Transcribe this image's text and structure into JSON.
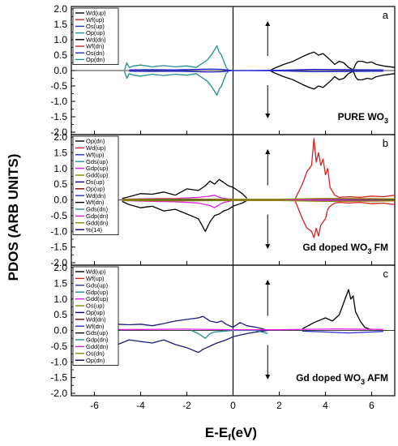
{
  "figure": {
    "ylabel": "PDOS (ARB UNITS)",
    "xlabel_main": "E-E",
    "xlabel_sub": "f",
    "xlabel_unit": "(eV)"
  },
  "chart_data": [
    {
      "type": "line",
      "panel": "a",
      "annotation": {
        "pre": "PURE WO",
        "sub": "3",
        "post": ""
      },
      "xlim": [
        -7,
        7
      ],
      "ylim": [
        -2.0,
        2.0
      ],
      "yticks": [
        2.0,
        1.5,
        1.0,
        0.5,
        0.0,
        -0.5,
        -1.0,
        -1.5,
        -2.0
      ],
      "legend": [
        {
          "name": "Wd(up)",
          "color": "#000000"
        },
        {
          "name": "Wf(up)",
          "color": "#d62020"
        },
        {
          "name": "Os(up)",
          "color": "#2b2bd6"
        },
        {
          "name": "Op(up)",
          "color": "#1f8f8f"
        },
        {
          "name": "Wd(dn)",
          "color": "#000000"
        },
        {
          "name": "Wf(dn)",
          "color": "#d62020"
        },
        {
          "name": "Os(dn)",
          "color": "#2b2bd6"
        },
        {
          "name": "Op(dn)",
          "color": "#1f8f8f"
        }
      ],
      "series": [
        {
          "name": "Op(up)",
          "color": "#1f8f8f",
          "x": [
            -4.7,
            -4.6,
            -4.5,
            -4.3,
            -4.0,
            -3.5,
            -3.0,
            -2.5,
            -2.0,
            -1.6,
            -1.3,
            -1.1,
            -0.9,
            -0.7,
            -0.6,
            -0.5,
            -0.4,
            -0.3,
            -0.2
          ],
          "values": [
            0.02,
            0.25,
            0.1,
            0.15,
            0.18,
            0.12,
            0.16,
            0.12,
            0.15,
            0.1,
            0.25,
            0.35,
            0.55,
            0.8,
            0.6,
            0.5,
            0.3,
            0.1,
            0.02
          ]
        },
        {
          "name": "Op(dn)",
          "color": "#1f8f8f",
          "x": [
            -4.7,
            -4.6,
            -4.5,
            -4.3,
            -4.0,
            -3.5,
            -3.0,
            -2.5,
            -2.0,
            -1.6,
            -1.3,
            -1.1,
            -0.9,
            -0.7,
            -0.6,
            -0.5,
            -0.4,
            -0.3,
            -0.2
          ],
          "values": [
            -0.02,
            -0.25,
            -0.1,
            -0.15,
            -0.18,
            -0.12,
            -0.16,
            -0.12,
            -0.15,
            -0.1,
            -0.25,
            -0.35,
            -0.55,
            -0.8,
            -0.6,
            -0.5,
            -0.3,
            -0.1,
            -0.02
          ]
        },
        {
          "name": "Wd(up)",
          "color": "#000000",
          "x": [
            1.6,
            1.8,
            2.2,
            2.6,
            3.0,
            3.3,
            3.5,
            3.7,
            3.9,
            4.2,
            4.4,
            4.6,
            4.8,
            5.0,
            5.2,
            5.3,
            5.4,
            5.6,
            5.8,
            6.0,
            6.2,
            6.5,
            7.0
          ],
          "values": [
            0.0,
            0.08,
            0.2,
            0.3,
            0.45,
            0.55,
            0.6,
            0.5,
            0.55,
            0.35,
            0.2,
            0.3,
            0.25,
            0.1,
            0.02,
            0.2,
            0.3,
            0.3,
            0.25,
            0.28,
            0.2,
            0.15,
            0.1
          ]
        },
        {
          "name": "Wd(dn)",
          "color": "#000000",
          "x": [
            1.6,
            1.8,
            2.2,
            2.6,
            3.0,
            3.3,
            3.5,
            3.7,
            3.9,
            4.2,
            4.4,
            4.6,
            4.8,
            5.0,
            5.2,
            5.3,
            5.4,
            5.6,
            5.8,
            6.0,
            6.2,
            6.5,
            7.0
          ],
          "values": [
            0.0,
            -0.08,
            -0.2,
            -0.3,
            -0.45,
            -0.55,
            -0.6,
            -0.5,
            -0.55,
            -0.35,
            -0.2,
            -0.3,
            -0.25,
            -0.1,
            -0.02,
            -0.2,
            -0.3,
            -0.3,
            -0.25,
            -0.28,
            -0.2,
            -0.15,
            -0.1
          ]
        },
        {
          "name": "Os(up)",
          "color": "#2b2bd6",
          "x": [
            -4.5,
            -3.5,
            -2.5,
            -1.5,
            -1.0,
            -0.5,
            0.0,
            2.0,
            3.5,
            5.0,
            6.5
          ],
          "values": [
            0.02,
            0.03,
            0.02,
            0.04,
            0.05,
            0.04,
            0.0,
            0.01,
            0.04,
            0.03,
            0.02
          ]
        },
        {
          "name": "Os(dn)",
          "color": "#2b2bd6",
          "x": [
            -4.5,
            -3.5,
            -2.5,
            -1.5,
            -1.0,
            -0.5,
            0.0,
            2.0,
            3.5,
            5.0,
            6.5
          ],
          "values": [
            -0.02,
            -0.03,
            -0.02,
            -0.04,
            -0.05,
            -0.04,
            0.0,
            -0.01,
            -0.04,
            -0.03,
            -0.02
          ]
        }
      ]
    },
    {
      "type": "line",
      "panel": "b",
      "annotation": {
        "pre": "Gd doped WO",
        "sub": "3",
        "post": " FM"
      },
      "xlim": [
        -7,
        7
      ],
      "ylim": [
        -2.0,
        2.0
      ],
      "yticks": [
        2.0,
        1.5,
        1.0,
        0.5,
        0.0,
        -0.5,
        -1.0,
        -1.5,
        -2.0
      ],
      "legend": [
        {
          "name": "Op(dn)",
          "color": "#000000"
        },
        {
          "name": "Wd(up)",
          "color": "#d62020"
        },
        {
          "name": "Wf(up)",
          "color": "#2b2bd6"
        },
        {
          "name": "Gds(up)",
          "color": "#1f8f8f"
        },
        {
          "name": "Gdp(up)",
          "color": "#e020e0"
        },
        {
          "name": "Gdd(up)",
          "color": "#8a8a00"
        },
        {
          "name": "Os(up)",
          "color": "#000080"
        },
        {
          "name": "Op(up)",
          "color": "#800000"
        },
        {
          "name": "Wd(dn)",
          "color": "#2b2bd6"
        },
        {
          "name": "Wf(dn)",
          "color": "#000000"
        },
        {
          "name": "Gds(dn)",
          "color": "#1f8f8f"
        },
        {
          "name": "Gdp(dn)",
          "color": "#e020e0"
        },
        {
          "name": "Gdd(dn)",
          "color": "#8a8a00"
        },
        {
          "name": "%(14)",
          "color": "#000080"
        }
      ],
      "series": [
        {
          "name": "Op(up)",
          "color": "#000000",
          "x": [
            -4.8,
            -4.5,
            -4.0,
            -3.5,
            -3.0,
            -2.5,
            -2.0,
            -1.5,
            -1.2,
            -1.0,
            -0.8,
            -0.6,
            -0.4,
            -0.2,
            0.0,
            0.2,
            0.4,
            0.6
          ],
          "values": [
            0.05,
            0.1,
            0.2,
            0.18,
            0.25,
            0.15,
            0.35,
            0.3,
            0.45,
            0.6,
            0.5,
            0.65,
            0.55,
            0.45,
            0.4,
            0.3,
            0.2,
            0.05
          ]
        },
        {
          "name": "Op(dn)",
          "color": "#000000",
          "x": [
            -4.8,
            -4.5,
            -4.0,
            -3.5,
            -3.0,
            -2.5,
            -2.0,
            -1.5,
            -1.2,
            -1.0,
            -0.8,
            -0.6,
            -0.4,
            -0.2,
            0.0,
            0.2,
            0.4,
            0.6
          ],
          "values": [
            -0.05,
            -0.15,
            -0.25,
            -0.2,
            -0.35,
            -0.3,
            -0.45,
            -0.6,
            -1.0,
            -0.7,
            -0.5,
            -0.45,
            -0.35,
            -0.3,
            -0.2,
            -0.15,
            -0.1,
            -0.02
          ]
        },
        {
          "name": "Wd(up)",
          "color": "#d62020",
          "x": [
            2.7,
            3.0,
            3.2,
            3.4,
            3.5,
            3.6,
            3.7,
            3.8,
            3.9,
            4.0,
            4.1,
            4.2,
            4.4,
            4.6,
            5.0,
            5.5,
            6.0,
            6.5,
            7.0
          ],
          "values": [
            0.05,
            0.5,
            0.9,
            1.1,
            1.95,
            1.2,
            1.5,
            1.1,
            1.3,
            0.8,
            1.0,
            0.4,
            0.15,
            0.08,
            0.1,
            0.08,
            0.12,
            0.1,
            0.15
          ]
        },
        {
          "name": "Wd(dn)",
          "color": "#d62020",
          "x": [
            2.7,
            3.0,
            3.2,
            3.4,
            3.5,
            3.6,
            3.7,
            3.8,
            3.9,
            4.0,
            4.1,
            4.2,
            4.4,
            4.6,
            5.0,
            5.5,
            6.0,
            6.5,
            7.0
          ],
          "values": [
            -0.05,
            -0.6,
            -0.9,
            -1.0,
            -1.2,
            -0.9,
            -1.15,
            -0.8,
            -0.7,
            -0.6,
            -0.3,
            -0.2,
            -0.1,
            -0.08,
            -0.1,
            -0.08,
            -0.12,
            -0.1,
            -0.15
          ]
        },
        {
          "name": "Gdp(up)",
          "color": "#e020e0",
          "x": [
            -4.8,
            -3.5,
            -2.5,
            -1.5,
            -1.0,
            -0.8,
            -0.6,
            -0.4,
            -0.2,
            0.0,
            0.5,
            1.5,
            3.5,
            5.5,
            7.0
          ],
          "values": [
            0.02,
            0.04,
            0.05,
            0.08,
            0.12,
            0.15,
            0.08,
            0.05,
            0.03,
            0.02,
            0.02,
            0.01,
            0.02,
            0.03,
            0.03
          ]
        },
        {
          "name": "Gdp(dn)",
          "color": "#e020e0",
          "x": [
            -4.8,
            -3.5,
            -2.5,
            -1.5,
            -1.0,
            -0.8,
            -0.6,
            -0.4,
            -0.2,
            0.0,
            0.5,
            1.5,
            3.5,
            5.5,
            7.0
          ],
          "values": [
            -0.02,
            -0.05,
            -0.06,
            -0.1,
            -0.18,
            -0.25,
            -0.15,
            -0.08,
            -0.05,
            -0.02,
            -0.02,
            -0.01,
            -0.02,
            -0.03,
            -0.03
          ]
        },
        {
          "name": "Gdd(up)",
          "color": "#8a8a00",
          "x": [
            -4.8,
            -2.0,
            0.0,
            2.0,
            4.0,
            6.0,
            7.0
          ],
          "values": [
            0.02,
            0.03,
            0.02,
            0.02,
            0.05,
            0.04,
            0.03
          ]
        },
        {
          "name": "Gdd(dn)",
          "color": "#8a8a00",
          "x": [
            -4.8,
            -2.0,
            0.0,
            2.0,
            4.0,
            6.0,
            7.0
          ],
          "values": [
            -0.02,
            -0.03,
            -0.02,
            -0.02,
            -0.05,
            -0.04,
            -0.03
          ]
        }
      ]
    },
    {
      "type": "line",
      "panel": "c",
      "annotation": {
        "pre": "Gd doped WO",
        "sub": "3",
        "post": " AFM"
      },
      "xlim": [
        -7,
        7
      ],
      "ylim": [
        -2.0,
        2.0
      ],
      "yticks": [
        2.0,
        1.5,
        1.0,
        0.5,
        0.0,
        -0.5,
        -1.0,
        -1.5,
        -2.0
      ],
      "legend": [
        {
          "name": "Wd(up)",
          "color": "#000000"
        },
        {
          "name": "Wf(up)",
          "color": "#d62020"
        },
        {
          "name": "Gds(up)",
          "color": "#2b2bd6"
        },
        {
          "name": "Gdp(up)",
          "color": "#1f8f8f"
        },
        {
          "name": "Gdd(up)",
          "color": "#e020e0"
        },
        {
          "name": "Os(up)",
          "color": "#8a8a00"
        },
        {
          "name": "Op(up)",
          "color": "#000080"
        },
        {
          "name": "Wd(dn)",
          "color": "#800000"
        },
        {
          "name": "Wf(dn)",
          "color": "#2b2bd6"
        },
        {
          "name": "Gds(up)",
          "color": "#000000"
        },
        {
          "name": "Gdp(dn)",
          "color": "#1f8f8f"
        },
        {
          "name": "Gdd(dn)",
          "color": "#e020e0"
        },
        {
          "name": "Os(dn)",
          "color": "#8a8a00"
        },
        {
          "name": "Op(dn)",
          "color": "#000080"
        }
      ],
      "series": [
        {
          "name": "Op(up)",
          "color": "#1a1a7a",
          "x": [
            -6.5,
            -6.0,
            -5.5,
            -5.0,
            -4.5,
            -4.0,
            -3.5,
            -3.0,
            -2.5,
            -2.0,
            -1.5,
            -1.3,
            -1.0,
            -0.7,
            -0.5,
            -0.3,
            0.0,
            0.3,
            0.6,
            1.0,
            1.3,
            1.5
          ],
          "values": [
            0.05,
            0.1,
            0.15,
            0.2,
            0.18,
            0.2,
            0.15,
            0.22,
            0.3,
            0.35,
            0.4,
            0.45,
            0.3,
            0.25,
            0.3,
            0.2,
            0.1,
            0.25,
            0.15,
            0.1,
            0.05,
            0.0
          ]
        },
        {
          "name": "Op(dn)",
          "color": "#1a1a7a",
          "x": [
            -6.5,
            -6.0,
            -5.5,
            -5.0,
            -4.5,
            -4.0,
            -3.5,
            -3.0,
            -2.5,
            -2.0,
            -1.5,
            -1.3,
            -1.0,
            -0.7,
            -0.5,
            -0.3,
            0.0,
            0.3,
            0.6,
            1.0,
            1.3,
            1.5
          ],
          "values": [
            -0.05,
            -0.2,
            -0.35,
            -0.45,
            -0.3,
            -0.35,
            -0.4,
            -0.3,
            -0.45,
            -0.55,
            -0.7,
            -0.6,
            -0.5,
            -0.4,
            -0.35,
            -0.3,
            -0.2,
            -0.15,
            -0.1,
            -0.05,
            -0.02,
            0.0
          ]
        },
        {
          "name": "Wd(up)",
          "color": "#000000",
          "x": [
            3.0,
            3.5,
            4.0,
            4.3,
            4.6,
            4.8,
            4.9,
            5.0,
            5.1,
            5.2,
            5.3,
            5.5,
            5.7,
            6.0
          ],
          "values": [
            0.05,
            0.25,
            0.4,
            0.3,
            0.5,
            0.9,
            1.1,
            1.3,
            1.0,
            1.1,
            0.6,
            0.3,
            0.1,
            0.02
          ]
        },
        {
          "name": "Gds(up)",
          "color": "#1f8f8f",
          "x": [
            -1.8,
            -1.5,
            -1.2,
            -1.0,
            -0.8,
            -0.5,
            0.0,
            1.0,
            1.5
          ],
          "values": [
            0.0,
            -0.1,
            -0.25,
            -0.1,
            -0.05,
            -0.03,
            0.0,
            0.0,
            -0.1
          ]
        },
        {
          "name": "Gdd(up)",
          "color": "#e020e0",
          "x": [
            -6.5,
            -4.0,
            -2.0,
            0.0,
            2.0,
            4.5,
            6.5
          ],
          "values": [
            0.02,
            0.03,
            0.04,
            0.02,
            0.02,
            0.05,
            0.03
          ]
        },
        {
          "name": "Wf(dn)",
          "color": "#2b2bd6",
          "x": [
            3.0,
            4.0,
            5.0,
            6.0,
            6.5
          ],
          "values": [
            -0.02,
            -0.05,
            -0.08,
            -0.05,
            -0.03
          ]
        }
      ]
    }
  ]
}
